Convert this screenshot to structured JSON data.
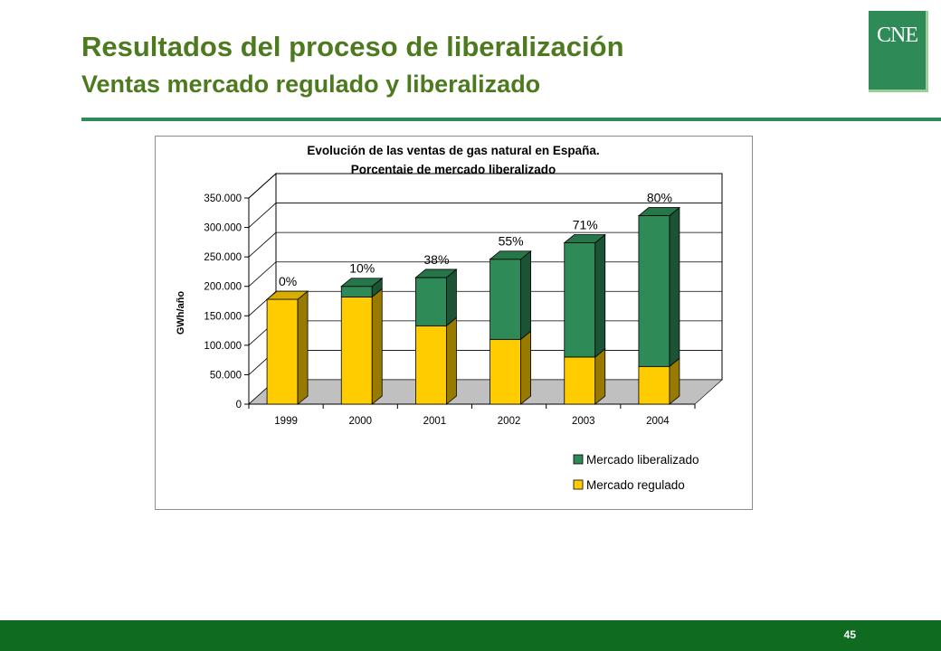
{
  "header": {
    "title": "Resultados del proceso de liberalización",
    "subtitle": "Ventas mercado regulado y liberalizado",
    "logo_text": "CNE"
  },
  "footer": {
    "page_number": "45"
  },
  "colors": {
    "liberalizado": "#2e8b57",
    "regulado": "#ffcc00",
    "brand_green": "#4d7a1f",
    "footer_green": "#0e6b20"
  },
  "chart_data": {
    "type": "bar",
    "stacked": true,
    "three_d": true,
    "title_line1": "Evolución de las ventas de gas natural en España.",
    "title_line2": "Porcentaje de mercado liberalizado",
    "ylabel": "GWh/año",
    "xlabel": "",
    "ylim": [
      0,
      350000
    ],
    "yticks": [
      "0",
      "50.000",
      "100.000",
      "150.000",
      "200.000",
      "250.000",
      "300.000",
      "350.000"
    ],
    "categories": [
      "1999",
      "2000",
      "2001",
      "2002",
      "2003",
      "2004"
    ],
    "series": [
      {
        "name": "Mercado regulado",
        "values": [
          178000,
          182000,
          133000,
          110000,
          80000,
          64000
        ]
      },
      {
        "name": "Mercado liberalizado",
        "values": [
          0,
          18000,
          82000,
          136000,
          194000,
          256000
        ]
      }
    ],
    "annotations": [
      "0%",
      "10%",
      "38%",
      "55%",
      "71%",
      "80%"
    ],
    "legend": [
      "Mercado liberalizado",
      "Mercado regulado"
    ],
    "legend_position": "bottom-right",
    "grid": true
  }
}
